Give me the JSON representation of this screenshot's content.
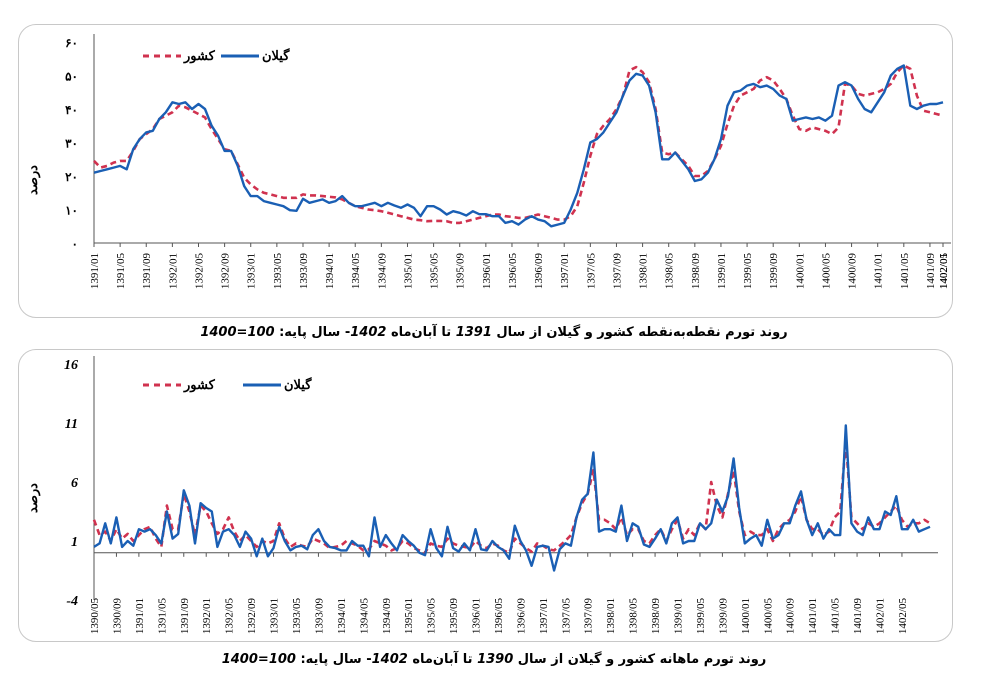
{
  "colors": {
    "gilan": "#1a5fb4",
    "gilan_light": "#3cc6e8",
    "keshvar": "#d0324f",
    "axis": "#555555"
  },
  "top_caption": {
    "before": "روند تورم نقطه‌به‌نقطه کشور و گیلان  از سال ",
    "year_from": "1391",
    "middle": "  تا آبان‌ماه ",
    "year_to": "1402",
    "after": "- سال پایه: ",
    "base": "100=1400"
  },
  "bottom_caption": {
    "before": "روند تورم ماهانه کشور و گیلان  از سال ",
    "year_from": "1390",
    "middle": "  تا آبان‌ماه ",
    "year_to": "1402",
    "after": "- سال پایه: ",
    "base": "100=1400"
  },
  "chart_data": [
    {
      "type": "line",
      "title": "روند تورم نقطه‌به‌نقطه کشور و گیلان  از سال 1391 تا آبان‌ماه 1402- سال پایه: 100=1400",
      "ylabel": "درصد",
      "ylim": [
        0,
        60
      ],
      "yticks": [
        "۰",
        "۱۰",
        "۲۰",
        "۳۰",
        "۴۰",
        "۵۰",
        "۶۰"
      ],
      "ytick_values": [
        0,
        10,
        20,
        30,
        40,
        50,
        60
      ],
      "categories_tick_labels": [
        "1391/01",
        "1391/05",
        "1391/09",
        "1392/01",
        "1392/05",
        "1392/09",
        "1393/01",
        "1393/05",
        "1393/09",
        "1394/01",
        "1394/05",
        "1394/09",
        "1395/01",
        "1395/05",
        "1395/09",
        "1396/01",
        "1396/05",
        "1396/09",
        "1397/01",
        "1397/05",
        "1397/09",
        "1398/01",
        "1398/05",
        "1398/09",
        "1399/01",
        "1399/05",
        "1399/09",
        "1400/01",
        "1400/05",
        "1400/09",
        "1401/01",
        "1401/05",
        "1401/09",
        "1402/01",
        "1402/05"
      ],
      "legend": [
        "گیلان",
        "کشور"
      ],
      "legend_position": "top-left",
      "series": [
        {
          "name": "گیلان",
          "values": [
            21,
            21.5,
            22,
            22.5,
            23,
            22,
            28,
            31,
            33,
            33.5,
            37,
            39,
            42,
            41.5,
            42,
            40,
            41.5,
            40,
            35,
            32,
            27.5,
            27.5,
            23,
            17,
            14,
            14,
            12.5,
            12,
            11.5,
            11,
            9.8,
            9.6,
            13.2,
            12,
            12.5,
            13,
            12,
            12.5,
            14,
            12,
            11,
            11,
            11.5,
            12,
            11,
            12,
            11.2,
            10.5,
            11.5,
            10.5,
            8,
            11,
            11,
            10,
            8.5,
            9.5,
            9,
            8.2,
            9.5,
            8.6,
            8.6,
            8,
            8,
            6,
            6.5,
            5.5,
            7,
            8,
            7,
            6.5,
            5,
            5.5,
            6,
            10,
            15,
            22,
            30,
            31,
            33,
            36,
            39,
            44,
            48.5,
            50.5,
            50,
            47,
            39,
            25,
            25,
            27,
            24.5,
            22,
            18.5,
            19,
            21,
            25,
            31,
            41,
            45,
            45.5,
            47,
            47.5,
            46.5,
            47,
            46,
            44,
            43,
            36.5,
            37,
            37.5,
            37,
            37.5,
            36.5,
            38,
            47,
            48,
            47,
            43,
            40,
            39,
            42,
            45,
            50,
            52,
            53,
            41,
            40,
            41,
            41.5,
            41.5,
            42
          ]
        },
        {
          "name": "کشور",
          "values": [
            24.5,
            22.5,
            23,
            24,
            24.5,
            24.5,
            27.5,
            31,
            32.5,
            34,
            37,
            38,
            39,
            41,
            40.5,
            39.5,
            38.5,
            37.5,
            34,
            31,
            28,
            27.5,
            23.5,
            19.5,
            17.5,
            16,
            15,
            14.5,
            14,
            13.5,
            13.5,
            13.5,
            14.5,
            14.2,
            14.2,
            14,
            13.8,
            13.6,
            13,
            12,
            11,
            10.5,
            10,
            9.8,
            9.5,
            9,
            8.5,
            8,
            7.5,
            7,
            6.8,
            6.5,
            6.6,
            6.6,
            6.5,
            6,
            6,
            6.5,
            7,
            7.5,
            8,
            8.5,
            8.5,
            8,
            7.8,
            7.5,
            7.5,
            8,
            8.5,
            8,
            7.5,
            7,
            7,
            8,
            11,
            18,
            26,
            32.5,
            35,
            37,
            40,
            44,
            51.5,
            52.5,
            51,
            48,
            40,
            27,
            26.5,
            27,
            25,
            23,
            20,
            20,
            21.5,
            25,
            29,
            35.5,
            41,
            44,
            45,
            46,
            48.5,
            49.5,
            48.5,
            46,
            43,
            38,
            34,
            33.5,
            34.5,
            34,
            33.5,
            32.5,
            34.5,
            47.5,
            47,
            44.5,
            44,
            44.5,
            45,
            46,
            47.5,
            51,
            53,
            52,
            44,
            39.5,
            39,
            38.5,
            38
          ]
        }
      ]
    },
    {
      "type": "line",
      "title": "روند تورم ماهانه کشور و گیلان  از سال 1390 تا آبان‌ماه 1402- سال پایه: 100=1400",
      "ylabel": "درصد",
      "ylim": [
        -4,
        16
      ],
      "yticks": [
        "16",
        "11",
        "6",
        "1",
        "-4"
      ],
      "ytick_values": [
        16,
        11,
        6,
        1,
        -4
      ],
      "categories_tick_labels": [
        "1390/05",
        "1390/09",
        "1391/01",
        "1391/05",
        "1391/09",
        "1392/01",
        "1392/05",
        "1392/09",
        "1393/01",
        "1393/05",
        "1393/09",
        "1394/01",
        "1394/05",
        "1394/09",
        "1395/01",
        "1395/05",
        "1395/09",
        "1396/01",
        "1396/05",
        "1396/09",
        "1397/01",
        "1397/05",
        "1397/09",
        "1398/01",
        "1398/05",
        "1398/09",
        "1399/01",
        "1399/05",
        "1399/09",
        "1400/01",
        "1400/05",
        "1400/09",
        "1401/01",
        "1401/05",
        "1401/09",
        "1402/01",
        "1402/05"
      ],
      "legend": [
        "گیلان",
        "کشور"
      ],
      "legend_position": "top-left",
      "series": [
        {
          "name": "گیلان",
          "values": [
            0.5,
            0.8,
            2.5,
            0.8,
            3.0,
            0.5,
            1.0,
            0.6,
            2.0,
            1.8,
            2.0,
            1.5,
            0.8,
            3.5,
            1.2,
            1.6,
            5.3,
            4.0,
            0.8,
            4.2,
            3.8,
            3.5,
            0.5,
            1.8,
            2.0,
            1.5,
            0.5,
            1.8,
            1.2,
            -0.3,
            1.2,
            -0.3,
            0.4,
            2.2,
            1.0,
            0.2,
            0.5,
            0.6,
            0.3,
            1.5,
            2.0,
            1.0,
            0.5,
            0.4,
            0.2,
            0.2,
            1.0,
            0.6,
            0.6,
            -0.3,
            3.0,
            0.5,
            1.5,
            0.8,
            0.2,
            1.5,
            1.0,
            0.6,
            0.0,
            -0.2,
            2.0,
            0.4,
            -0.3,
            2.2,
            0.4,
            0.1,
            0.8,
            0.2,
            2.0,
            0.3,
            0.2,
            1.0,
            0.5,
            0.2,
            -0.5,
            2.3,
            1.0,
            0.2,
            -1.1,
            0.5,
            0.6,
            0.5,
            -1.5,
            0.3,
            0.8,
            0.6,
            3.0,
            4.5,
            5.0,
            8.5,
            1.8,
            2.0,
            2.0,
            1.8,
            4.0,
            1.0,
            2.5,
            2.2,
            0.7,
            0.5,
            1.2,
            2.0,
            0.8,
            2.5,
            3.0,
            0.8,
            1.0,
            1.0,
            2.5,
            2.0,
            2.5,
            4.5,
            3.5,
            4.8,
            8.0,
            3.8,
            0.8,
            1.2,
            1.5,
            0.6,
            2.8,
            1.2,
            1.5,
            2.5,
            2.5,
            4.0,
            5.2,
            2.8,
            1.5,
            2.5,
            1.2,
            2.0,
            1.5,
            1.5,
            10.8,
            2.5,
            1.8,
            1.5,
            3.0,
            2.0,
            2.0,
            3.5,
            3.2,
            4.8,
            2.0,
            2.0,
            2.8,
            1.8,
            2.0,
            2.2
          ]
        },
        {
          "name": "کشور",
          "values": [
            2.8,
            1.5,
            1.8,
            1.0,
            2.0,
            1.2,
            1.6,
            1.0,
            1.5,
            2.0,
            2.2,
            1.2,
            0.5,
            4.0,
            2.0,
            2.0,
            5.0,
            3.5,
            1.5,
            4.0,
            3.5,
            2.5,
            1.6,
            2.0,
            3.0,
            1.8,
            1.0,
            1.5,
            1.0,
            0.5,
            1.0,
            0.8,
            1.0,
            2.5,
            1.2,
            0.5,
            0.8,
            0.6,
            0.5,
            1.2,
            1.0,
            0.8,
            0.4,
            0.5,
            0.6,
            1.0,
            0.8,
            0.6,
            0.2,
            0.3,
            1.0,
            0.8,
            0.6,
            0.2,
            0.4,
            1.0,
            0.8,
            0.4,
            0.2,
            0.0,
            0.8,
            0.6,
            0.5,
            1.2,
            0.8,
            0.6,
            0.5,
            0.4,
            1.0,
            0.6,
            0.4,
            0.8,
            0.6,
            0.2,
            0.0,
            1.2,
            0.8,
            0.4,
            0.1,
            0.8,
            0.6,
            0.3,
            0.2,
            0.6,
            1.0,
            1.5,
            3.0,
            4.2,
            5.0,
            7.0,
            2.8,
            2.8,
            2.5,
            2.0,
            3.0,
            1.5,
            2.0,
            2.0,
            1.0,
            0.8,
            1.5,
            2.0,
            1.0,
            2.0,
            2.8,
            1.2,
            2.0,
            1.5,
            2.5,
            2.0,
            6.0,
            4.0,
            3.0,
            5.0,
            7.0,
            3.5,
            1.5,
            1.8,
            1.5,
            1.5,
            2.0,
            1.0,
            2.0,
            2.5,
            2.8,
            3.5,
            4.8,
            2.8,
            2.0,
            2.0,
            1.5,
            1.8,
            3.0,
            3.5,
            9.5,
            3.0,
            2.5,
            2.0,
            2.5,
            2.2,
            2.5,
            3.0,
            3.5,
            4.0,
            2.8,
            2.2,
            2.5,
            2.5,
            2.8,
            2.5
          ]
        }
      ]
    }
  ]
}
